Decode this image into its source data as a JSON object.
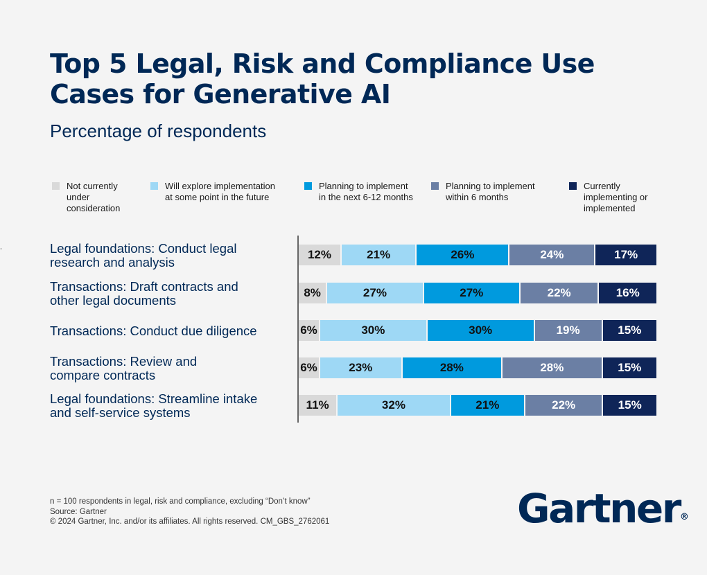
{
  "header": {
    "title": "Top 5 Legal, Risk and Compliance Use Cases for Generative AI",
    "subtitle": "Percentage of respondents"
  },
  "colors": {
    "not_considering": "#d9d9d9",
    "explore_future": "#9ed8f5",
    "plan_6_12": "#009ade",
    "plan_6": "#6b7fa4",
    "implementing": "#0f2558"
  },
  "chart_data": {
    "type": "bar",
    "orientation": "horizontal",
    "stacked": true,
    "normalized": true,
    "categories": [
      "Legal foundations: Conduct legal research and analysis",
      "Transactions: Draft contracts and other legal documents",
      "Transactions: Conduct due diligence",
      "Transactions: Review and compare contracts",
      "Legal foundations: Streamline intake and self-service systems"
    ],
    "category_lines": [
      [
        "Legal foundations: Conduct legal",
        "research and analysis"
      ],
      [
        "Transactions: Draft contracts and",
        "other legal documents"
      ],
      [
        "Transactions: Conduct due diligence"
      ],
      [
        "Transactions: Review and",
        "compare contracts"
      ],
      [
        "Legal foundations: Streamline intake",
        "and self-service systems"
      ]
    ],
    "series": [
      {
        "name": "Not currently under consideration",
        "legend_text": "Not currently\nunder\nconsideration",
        "color": "#d9d9d9",
        "text_color": "#111111",
        "values": [
          12,
          8,
          6,
          6,
          11
        ]
      },
      {
        "name": "Will explore implementation at some point in the future",
        "legend_text": "Will explore implementation\nat some point in the future",
        "color": "#9ed8f5",
        "text_color": "#111111",
        "values": [
          21,
          27,
          30,
          23,
          32
        ]
      },
      {
        "name": "Planning to implement in the next 6-12 months",
        "legend_text": "Planning to implement\nin the next 6-12 months",
        "color": "#009ade",
        "text_color": "#111111",
        "values": [
          26,
          27,
          30,
          28,
          21
        ]
      },
      {
        "name": "Planning to implement within 6 months",
        "legend_text": "Planning to implement\nwithin 6 months",
        "color": "#6b7fa4",
        "text_color": "#ffffff",
        "values": [
          24,
          22,
          19,
          28,
          22
        ]
      },
      {
        "name": "Currently implementing or implemented",
        "legend_text": "Currently\nimplementing or\nimplemented",
        "color": "#0f2558",
        "text_color": "#ffffff",
        "values": [
          17,
          16,
          15,
          15,
          15
        ]
      }
    ],
    "unit": "%",
    "legend_position": "top",
    "grid": false
  },
  "footer": {
    "note": "n = 100 respondents in legal, risk and compliance, excluding “Don’t know”",
    "source": "Source: Gartner",
    "copyright": "© 2024 Gartner, Inc. and/or its affiliates. All rights reserved. CM_GBS_2762061",
    "logo_text": "Gartner",
    "logo_mark": "®"
  }
}
